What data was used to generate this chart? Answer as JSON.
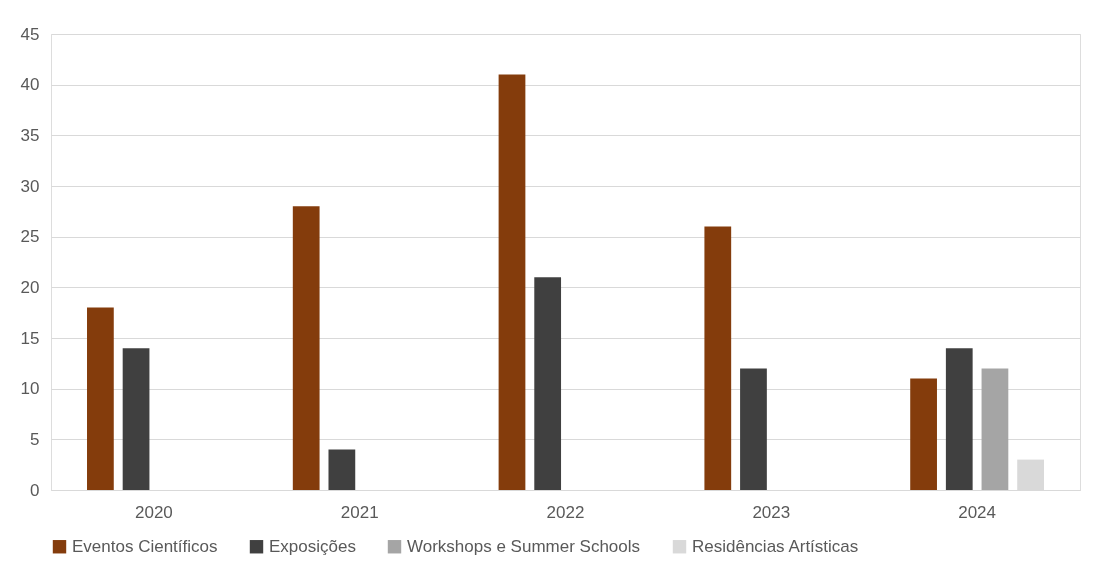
{
  "chart_data": {
    "type": "bar",
    "categories": [
      "2020",
      "2021",
      "2022",
      "2023",
      "2024"
    ],
    "series": [
      {
        "name": "Eventos Científicos",
        "color": "#843c0c",
        "values": [
          18,
          28,
          41,
          26,
          11
        ]
      },
      {
        "name": "Exposições",
        "color": "#404040",
        "values": [
          14,
          4,
          21,
          12,
          14
        ]
      },
      {
        "name": "Workshops e Summer Schools",
        "color": "#a5a5a5",
        "values": [
          null,
          null,
          null,
          null,
          12
        ]
      },
      {
        "name": "Residências Artísticas",
        "color": "#d9d9d9",
        "values": [
          null,
          null,
          null,
          null,
          3
        ]
      }
    ],
    "ylim": [
      0,
      45
    ],
    "yticks": [
      0,
      5,
      10,
      15,
      20,
      25,
      30,
      35,
      40,
      45
    ],
    "grid": "y",
    "legend": "bottom"
  }
}
